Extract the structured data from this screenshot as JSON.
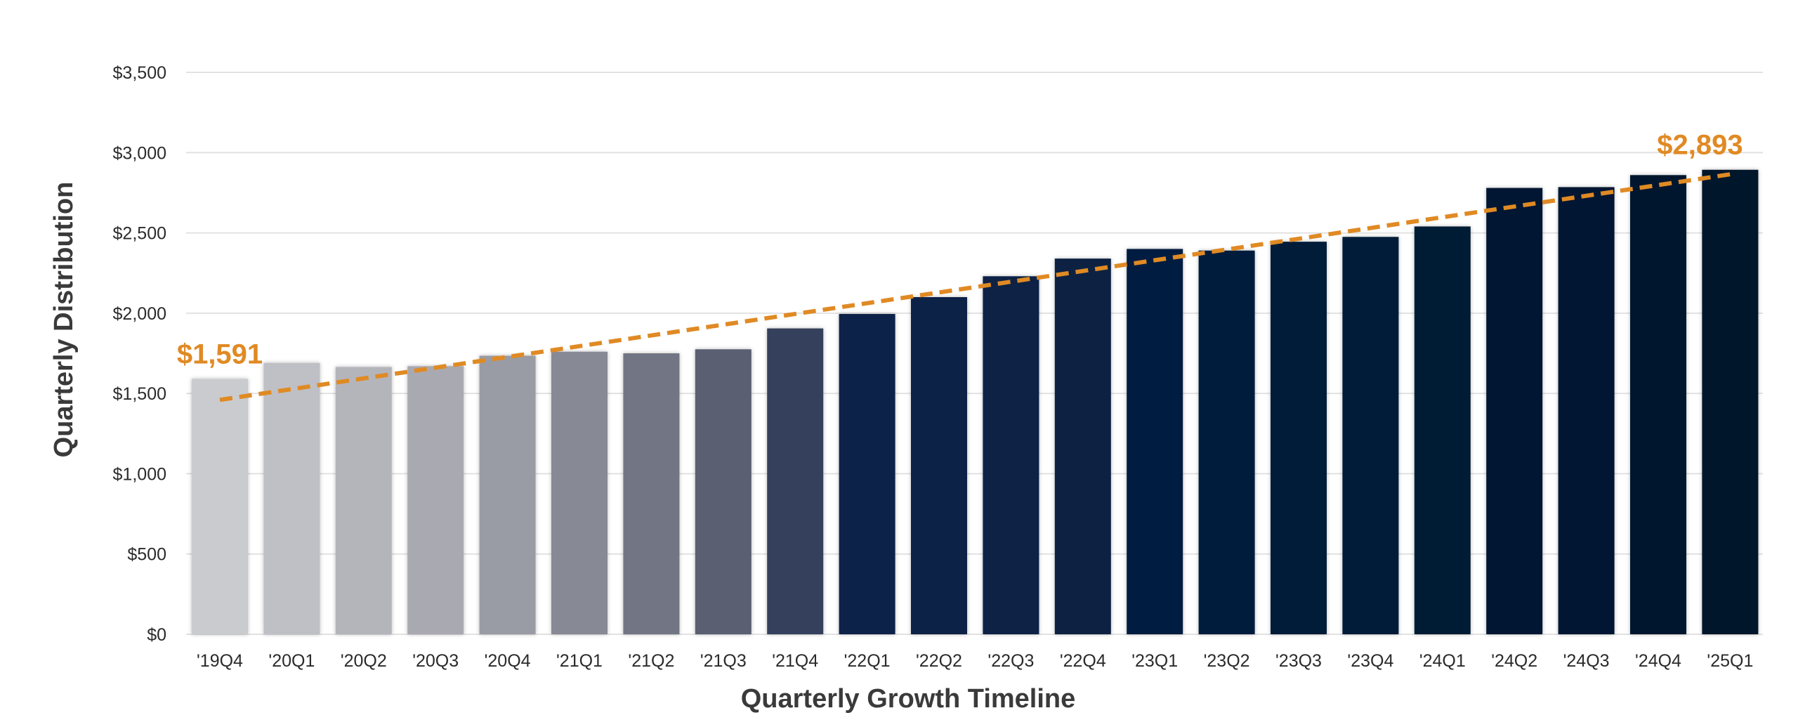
{
  "chart_data": {
    "type": "bar",
    "title": "",
    "xlabel": "Quarterly Growth Timeline",
    "ylabel": "Quarterly Distribution",
    "ylim": [
      0,
      3500
    ],
    "y_ticks": [
      0,
      500,
      1000,
      1500,
      2000,
      2500,
      3000,
      3500
    ],
    "y_tick_labels": [
      "$0",
      "$500",
      "$1,000",
      "$1,500",
      "$2,000",
      "$2,500",
      "$3,000",
      "$3,500"
    ],
    "grid": true,
    "legend": "none",
    "categories": [
      "'19Q4",
      "'20Q1",
      "'20Q2",
      "'20Q3",
      "'20Q4",
      "'21Q1",
      "'21Q2",
      "'21Q3",
      "'21Q4",
      "'22Q1",
      "'22Q2",
      "'22Q3",
      "'22Q4",
      "'23Q1",
      "'23Q2",
      "'23Q3",
      "'23Q4",
      "'24Q1",
      "'24Q2",
      "'24Q3",
      "'24Q4",
      "'25Q1"
    ],
    "values": [
      1591,
      1690,
      1665,
      1670,
      1735,
      1760,
      1750,
      1775,
      1905,
      1995,
      2100,
      2230,
      2340,
      2400,
      2390,
      2445,
      2475,
      2540,
      2780,
      2785,
      2860,
      2893
    ],
    "bar_colors": [
      "#cacbcf",
      "#bfc0c5",
      "#b4b5bb",
      "#a9aab1",
      "#9a9ca5",
      "#878a95",
      "#727684",
      "#5a5f72",
      "#353f5c",
      "#09244a",
      "#082447",
      "#082244",
      "#072142",
      "#061f3f",
      "#061e3c",
      "#051c39",
      "#051b37",
      "#041a34",
      "#041932",
      "#031830",
      "#03172e",
      "#02162c"
    ],
    "trend_line": {
      "style": "dashed",
      "color": "#e08a24",
      "start": {
        "category": "'19Q4",
        "value": 1460
      },
      "end": {
        "category": "'25Q1",
        "value": 2865
      }
    },
    "annotations": [
      {
        "text": "$1,591",
        "category": "'19Q4",
        "value": 1591,
        "color": "#e08a24"
      },
      {
        "text": "$2,893",
        "category": "'25Q1",
        "value": 2893,
        "color": "#e08a24"
      }
    ]
  }
}
